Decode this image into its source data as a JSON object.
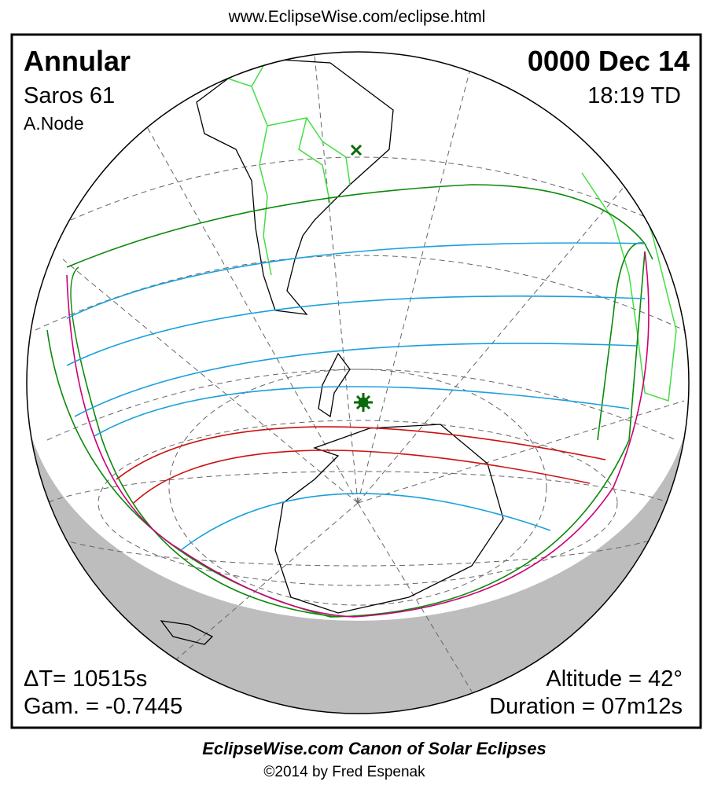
{
  "header": {
    "url": "www.EclipseWise.com/eclipse.html"
  },
  "panel": {
    "type": "Annular",
    "saros": "Saros  61",
    "node": "A.Node",
    "date": "0000 Dec 14",
    "time": "18:19 TD",
    "delta_t": "ΔT=  10515s",
    "gamma": "Gam. = -0.7445",
    "altitude": "Altitude = 42°",
    "duration": "Duration = 07m12s"
  },
  "footer": {
    "title": "EclipseWise.com Canon of Solar Eclipses",
    "credit": "©2014 by Fred Espenak"
  }
}
